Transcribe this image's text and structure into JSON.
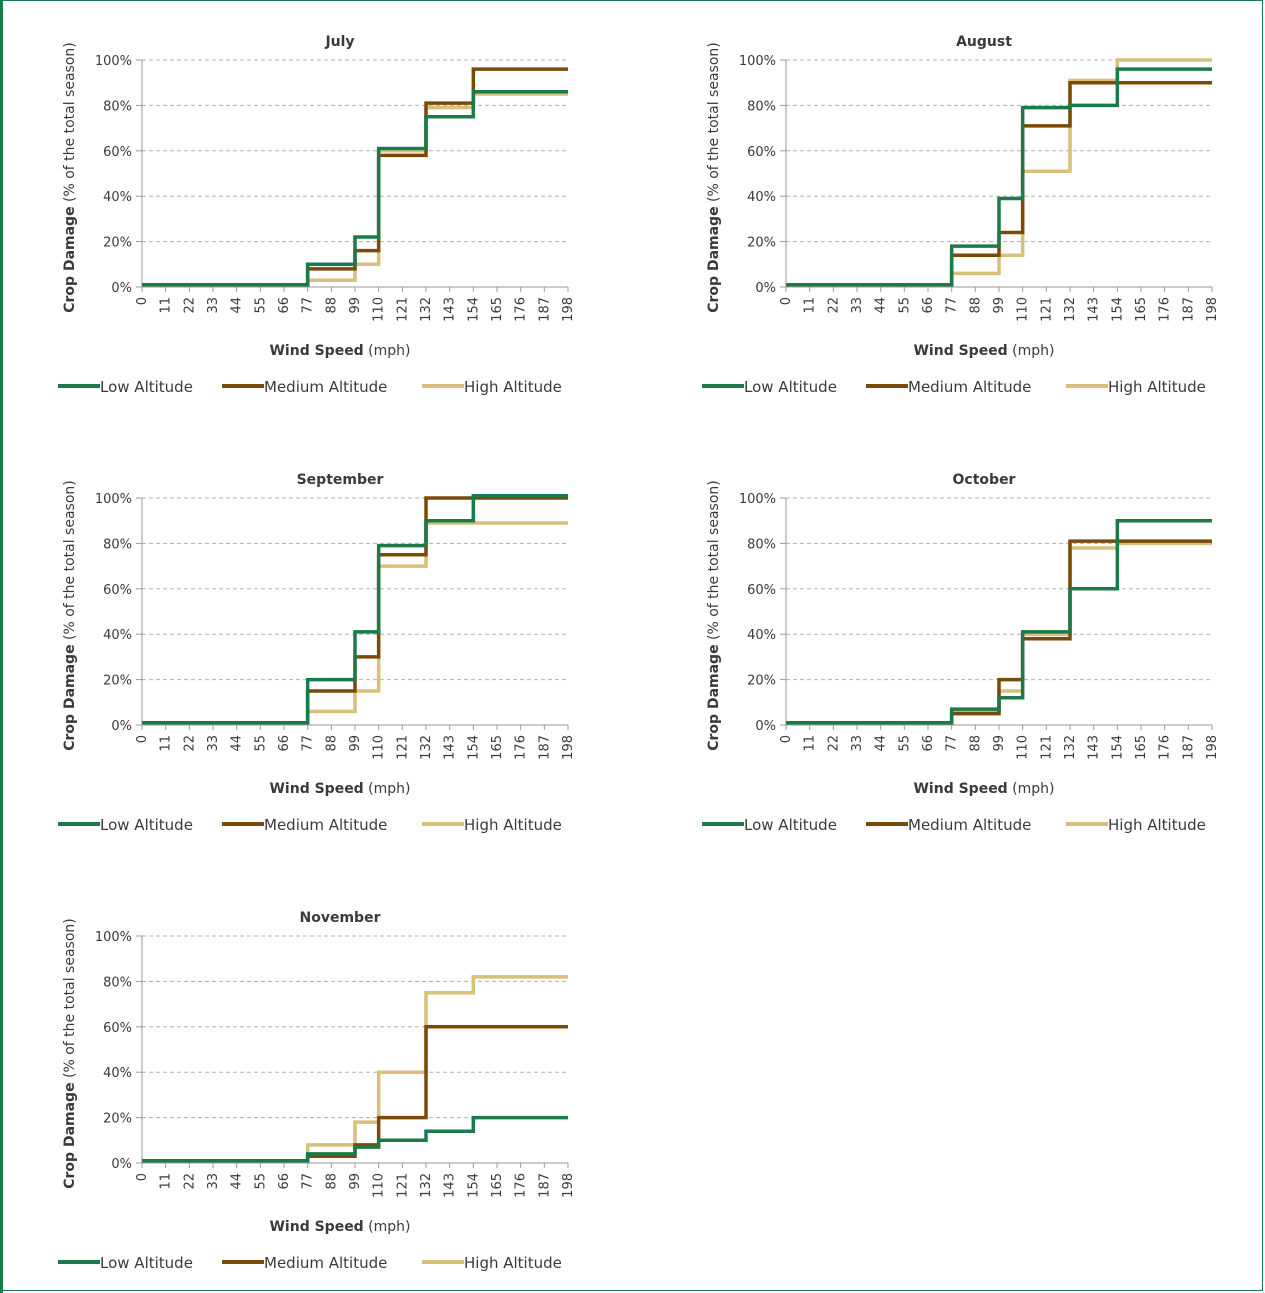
{
  "colors": {
    "frame": "#1a7a4a",
    "low": "#1a7a4a",
    "medium": "#7a4a0a",
    "high": "#d8c07a",
    "grid": "#b0b0b0",
    "axis": "#9a9a9a",
    "text": "#3a3a3a"
  },
  "common": {
    "ylabel_bold": "Crop Damage",
    "ylabel_rest": " (% of the total season)",
    "xlabel_bold": "Wind Speed",
    "xlabel_rest": " (mph)",
    "yticks": [
      "0%",
      "20%",
      "40%",
      "60%",
      "80%",
      "100%"
    ],
    "xticks": [
      "0",
      "11",
      "22",
      "33",
      "44",
      "55",
      "66",
      "77",
      "88",
      "99",
      "110",
      "121",
      "132",
      "143",
      "154",
      "165",
      "176",
      "187",
      "198"
    ],
    "legend": [
      "Low Altitude",
      "Medium Altitude",
      "High Altitude"
    ]
  },
  "chart_data": [
    {
      "type": "line",
      "step": true,
      "title": "July",
      "xlim": [
        0,
        198
      ],
      "ylim": [
        0,
        100
      ],
      "grid": true,
      "legend_position": "bottom",
      "x": [
        0,
        11,
        22,
        33,
        44,
        55,
        66,
        77,
        88,
        99,
        110,
        121,
        132,
        143,
        154,
        165,
        176,
        187,
        198
      ],
      "series": [
        {
          "name": "Low Altitude",
          "values": [
            1,
            1,
            1,
            1,
            1,
            1,
            1,
            10,
            10,
            22,
            61,
            61,
            75,
            75,
            86,
            86,
            86,
            86,
            86
          ]
        },
        {
          "name": "Medium Altitude",
          "values": [
            1,
            1,
            1,
            1,
            1,
            1,
            1,
            8,
            8,
            16,
            58,
            58,
            81,
            81,
            96,
            96,
            96,
            96,
            96
          ]
        },
        {
          "name": "High Altitude",
          "values": [
            1,
            1,
            1,
            1,
            1,
            1,
            1,
            3,
            3,
            10,
            60,
            60,
            79,
            79,
            85,
            85,
            85,
            85,
            85
          ]
        }
      ]
    },
    {
      "type": "line",
      "step": true,
      "title": "August",
      "xlim": [
        0,
        198
      ],
      "ylim": [
        0,
        100
      ],
      "grid": true,
      "legend_position": "bottom",
      "x": [
        0,
        11,
        22,
        33,
        44,
        55,
        66,
        77,
        88,
        99,
        110,
        121,
        132,
        143,
        154,
        165,
        176,
        187,
        198
      ],
      "series": [
        {
          "name": "Low Altitude",
          "values": [
            1,
            1,
            1,
            1,
            1,
            1,
            1,
            18,
            18,
            39,
            79,
            79,
            80,
            80,
            96,
            96,
            96,
            96,
            96
          ]
        },
        {
          "name": "Medium Altitude",
          "values": [
            1,
            1,
            1,
            1,
            1,
            1,
            1,
            14,
            14,
            24,
            71,
            71,
            90,
            90,
            90,
            90,
            90,
            90,
            90
          ]
        },
        {
          "name": "High Altitude",
          "values": [
            1,
            1,
            1,
            1,
            1,
            1,
            1,
            6,
            6,
            14,
            51,
            51,
            91,
            91,
            100,
            100,
            100,
            100,
            100
          ]
        }
      ]
    },
    {
      "type": "line",
      "step": true,
      "title": "September",
      "xlim": [
        0,
        198
      ],
      "ylim": [
        0,
        100
      ],
      "grid": true,
      "legend_position": "bottom",
      "x": [
        0,
        11,
        22,
        33,
        44,
        55,
        66,
        77,
        88,
        99,
        110,
        121,
        132,
        143,
        154,
        165,
        176,
        187,
        198
      ],
      "series": [
        {
          "name": "Low Altitude",
          "values": [
            1,
            1,
            1,
            1,
            1,
            1,
            1,
            20,
            20,
            41,
            79,
            79,
            90,
            90,
            101,
            101,
            101,
            101,
            101
          ]
        },
        {
          "name": "Medium Altitude",
          "values": [
            1,
            1,
            1,
            1,
            1,
            1,
            1,
            15,
            15,
            30,
            75,
            75,
            100,
            100,
            100,
            100,
            100,
            100,
            100
          ]
        },
        {
          "name": "High Altitude",
          "values": [
            1,
            1,
            1,
            1,
            1,
            1,
            1,
            6,
            6,
            15,
            70,
            70,
            89,
            89,
            89,
            89,
            89,
            89,
            89
          ]
        }
      ]
    },
    {
      "type": "line",
      "step": true,
      "title": "October",
      "xlim": [
        0,
        198
      ],
      "ylim": [
        0,
        100
      ],
      "grid": true,
      "legend_position": "bottom",
      "x": [
        0,
        11,
        22,
        33,
        44,
        55,
        66,
        77,
        88,
        99,
        110,
        121,
        132,
        143,
        154,
        165,
        176,
        187,
        198
      ],
      "series": [
        {
          "name": "Low Altitude",
          "values": [
            1,
            1,
            1,
            1,
            1,
            1,
            1,
            7,
            7,
            12,
            41,
            41,
            60,
            60,
            90,
            90,
            90,
            90,
            90
          ]
        },
        {
          "name": "Medium Altitude",
          "values": [
            1,
            1,
            1,
            1,
            1,
            1,
            1,
            5,
            5,
            20,
            38,
            38,
            81,
            81,
            81,
            81,
            81,
            81,
            81
          ]
        },
        {
          "name": "High Altitude",
          "values": [
            1,
            1,
            1,
            1,
            1,
            1,
            1,
            6,
            6,
            15,
            40,
            40,
            78,
            78,
            80,
            80,
            80,
            80,
            80
          ]
        }
      ]
    },
    {
      "type": "line",
      "step": true,
      "title": "November",
      "xlim": [
        0,
        198
      ],
      "ylim": [
        0,
        100
      ],
      "grid": true,
      "legend_position": "bottom",
      "x": [
        0,
        11,
        22,
        33,
        44,
        55,
        66,
        77,
        88,
        99,
        110,
        121,
        132,
        143,
        154,
        165,
        176,
        187,
        198
      ],
      "series": [
        {
          "name": "Low Altitude",
          "values": [
            1,
            1,
            1,
            1,
            1,
            1,
            1,
            4,
            4,
            7,
            10,
            10,
            14,
            14,
            20,
            20,
            20,
            20,
            20
          ]
        },
        {
          "name": "Medium Altitude",
          "values": [
            1,
            1,
            1,
            1,
            1,
            1,
            1,
            3,
            3,
            8,
            20,
            20,
            60,
            60,
            60,
            60,
            60,
            60,
            60
          ]
        },
        {
          "name": "High Altitude",
          "values": [
            1,
            1,
            1,
            1,
            1,
            1,
            1,
            8,
            8,
            18,
            40,
            40,
            75,
            75,
            82,
            82,
            82,
            82,
            82
          ]
        }
      ]
    }
  ]
}
